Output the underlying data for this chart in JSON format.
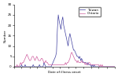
{
  "title": "",
  "xlabel": "Date of illness onset",
  "ylabel": "Number",
  "taiwan_color": "#4040a0",
  "ontario_color": "#d060a0",
  "legend_labels": [
    "Taiwan",
    "Ontario"
  ],
  "ylim": [
    0,
    30
  ],
  "yticks": [
    0,
    5,
    10,
    15,
    20,
    25,
    30
  ],
  "figsize": [
    1.5,
    0.98
  ],
  "dpi": 100,
  "taiwan": [
    0,
    0,
    0,
    0,
    0,
    0,
    0,
    0,
    1,
    0,
    0,
    0,
    1,
    0,
    0,
    0,
    0,
    0,
    0,
    0,
    0,
    1,
    0,
    0,
    0,
    0,
    0,
    0,
    1,
    0,
    0,
    0,
    0,
    2,
    1,
    0,
    0,
    0,
    0,
    0,
    0,
    0,
    1,
    2,
    3,
    4,
    5,
    7,
    18,
    25,
    22,
    20,
    18,
    22,
    24,
    20,
    18,
    16,
    14,
    12,
    10,
    14,
    16,
    14,
    12,
    10,
    8,
    8,
    7,
    6,
    5,
    5,
    4,
    5,
    3,
    4,
    3,
    2,
    2,
    2,
    2,
    1,
    2,
    1,
    1,
    1,
    0,
    1,
    0,
    1,
    0,
    0,
    0,
    0,
    0,
    0,
    0,
    0,
    0,
    0,
    0,
    0,
    0,
    0,
    0,
    0,
    0,
    0,
    0,
    0,
    0,
    0,
    0
  ],
  "ontario": [
    0,
    0,
    0,
    1,
    0,
    0,
    1,
    2,
    1,
    2,
    2,
    3,
    4,
    5,
    6,
    5,
    4,
    3,
    3,
    4,
    5,
    5,
    4,
    3,
    4,
    5,
    4,
    3,
    3,
    3,
    4,
    4,
    3,
    2,
    2,
    3,
    2,
    2,
    1,
    1,
    1,
    1,
    1,
    1,
    1,
    1,
    1,
    1,
    1,
    1,
    1,
    1,
    1,
    1,
    1,
    1,
    1,
    2,
    1,
    2,
    2,
    3,
    4,
    6,
    7,
    6,
    5,
    4,
    3,
    3,
    2,
    3,
    2,
    2,
    2,
    3,
    2,
    2,
    2,
    1,
    2,
    1,
    1,
    2,
    2,
    1,
    1,
    1,
    1,
    1,
    1,
    1,
    1,
    1,
    1,
    0,
    1,
    0,
    1,
    0,
    0,
    0,
    0,
    0,
    0,
    0,
    0,
    0,
    0,
    0,
    0,
    0,
    0
  ],
  "n_points": 113,
  "xtick_count": 14
}
